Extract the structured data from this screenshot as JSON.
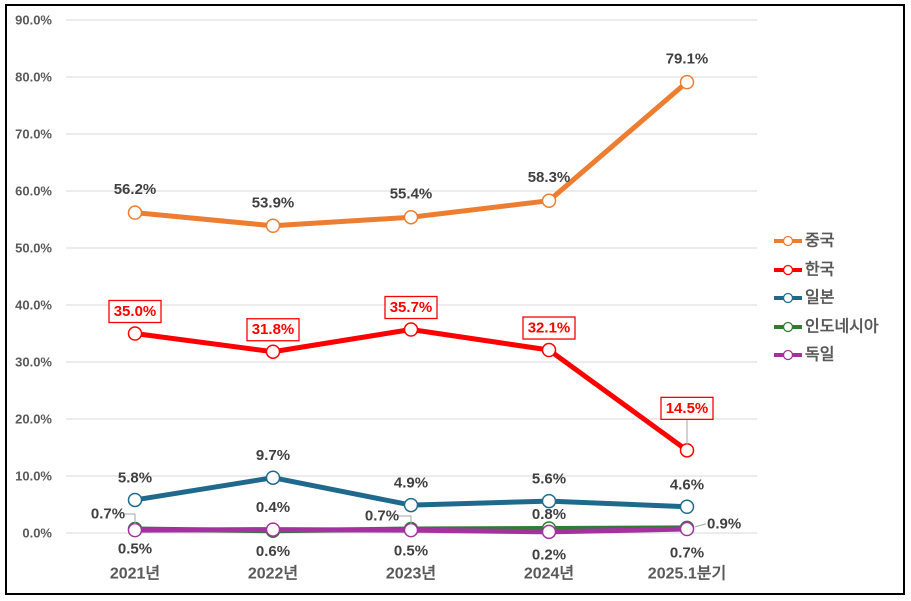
{
  "chart_data": {
    "type": "line",
    "title": "",
    "xlabel": "",
    "ylabel": "",
    "categories": [
      "2021년",
      "2022년",
      "2023년",
      "2024년",
      "2025.1분기"
    ],
    "y_ticks": [
      "0.0%",
      "10.0%",
      "20.0%",
      "30.0%",
      "40.0%",
      "50.0%",
      "60.0%",
      "70.0%",
      "80.0%",
      "90.0%"
    ],
    "ylim": [
      0,
      90
    ],
    "y_unit": "%",
    "grid": true,
    "legend_position": "right",
    "series": [
      {
        "name": "중국",
        "color": "#ED7D31",
        "values": [
          56.2,
          53.9,
          55.4,
          58.3,
          79.1
        ],
        "labels": [
          "56.2%",
          "53.9%",
          "55.4%",
          "58.3%",
          "79.1%"
        ],
        "highlighted": false
      },
      {
        "name": "한국",
        "color": "#FF0000",
        "values": [
          35.0,
          31.8,
          35.7,
          32.1,
          14.5
        ],
        "labels": [
          "35.0%",
          "31.8%",
          "35.7%",
          "32.1%",
          "14.5%"
        ],
        "highlighted": true
      },
      {
        "name": "일본",
        "color": "#1F6A8C",
        "values": [
          5.8,
          9.7,
          4.9,
          5.6,
          4.6
        ],
        "labels": [
          "5.8%",
          "9.7%",
          "4.9%",
          "5.6%",
          "4.6%"
        ],
        "highlighted": false
      },
      {
        "name": "인도네시아",
        "color": "#2E7D32",
        "values": [
          0.7,
          0.4,
          0.7,
          0.8,
          0.9
        ],
        "labels": [
          "0.7%",
          "0.4%",
          "0.7%",
          "0.8%",
          "0.9%"
        ],
        "highlighted": false
      },
      {
        "name": "독일",
        "color": "#A3329E",
        "values": [
          0.5,
          0.6,
          0.5,
          0.2,
          0.7
        ],
        "labels": [
          "0.5%",
          "0.6%",
          "0.5%",
          "0.2%",
          "0.7%"
        ],
        "highlighted": false
      }
    ]
  }
}
